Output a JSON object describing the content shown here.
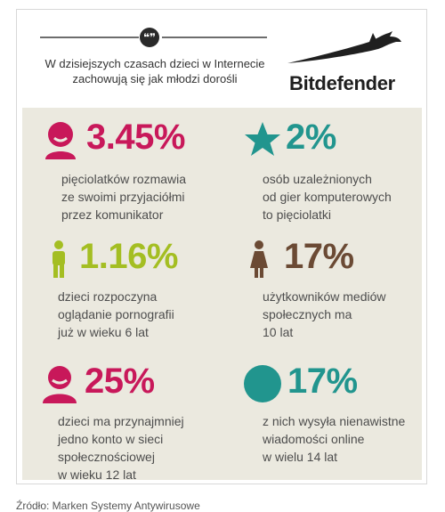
{
  "quote": {
    "badge": "❝❞",
    "text": "W dzisiejszych czasach dzieci w Internecie\nzachowują się jak młodzi dorośli"
  },
  "brand": {
    "name": "Bitdefender"
  },
  "colors": {
    "magenta": "#c8185a",
    "teal": "#21958e",
    "lime": "#a4be22",
    "brown": "#6b4a34"
  },
  "stats": [
    {
      "icon": "chat-person-icon",
      "value": "3.45%",
      "description": "pięciolatków rozmawia\nze swoimi przyjaciółmi\nprzez komunikator",
      "color": "#c8185a"
    },
    {
      "icon": "star-icon",
      "value": "2%",
      "description": "osób uzależnionych\nod gier komputerowych\nto pięciolatki",
      "color": "#21958e"
    },
    {
      "icon": "boy-figure-icon",
      "value": "1.16%",
      "description": "dzieci rozpoczyna\noglądanie pornografii\njuż w  wieku 6 lat",
      "color": "#a4be22"
    },
    {
      "icon": "girl-figure-icon",
      "value": "17%",
      "description": "użytkowników mediów\nspołecznych ma\n10 lat",
      "color": "#6b4a34"
    },
    {
      "icon": "person-bust-icon",
      "value": "25%",
      "description": "dzieci ma przynajmniej\njedno konto w sieci\nspołecznościowej\nw wieku 12 lat",
      "color": "#c8185a"
    },
    {
      "icon": "circle-icon",
      "value": "17%",
      "description": "z nich wysyła nienawistne\nwiadomości online\nw wielu 14 lat",
      "color": "#21958e"
    }
  ],
  "footer": {
    "source": "Źródło: Marken Systemy Antywirusowe"
  }
}
